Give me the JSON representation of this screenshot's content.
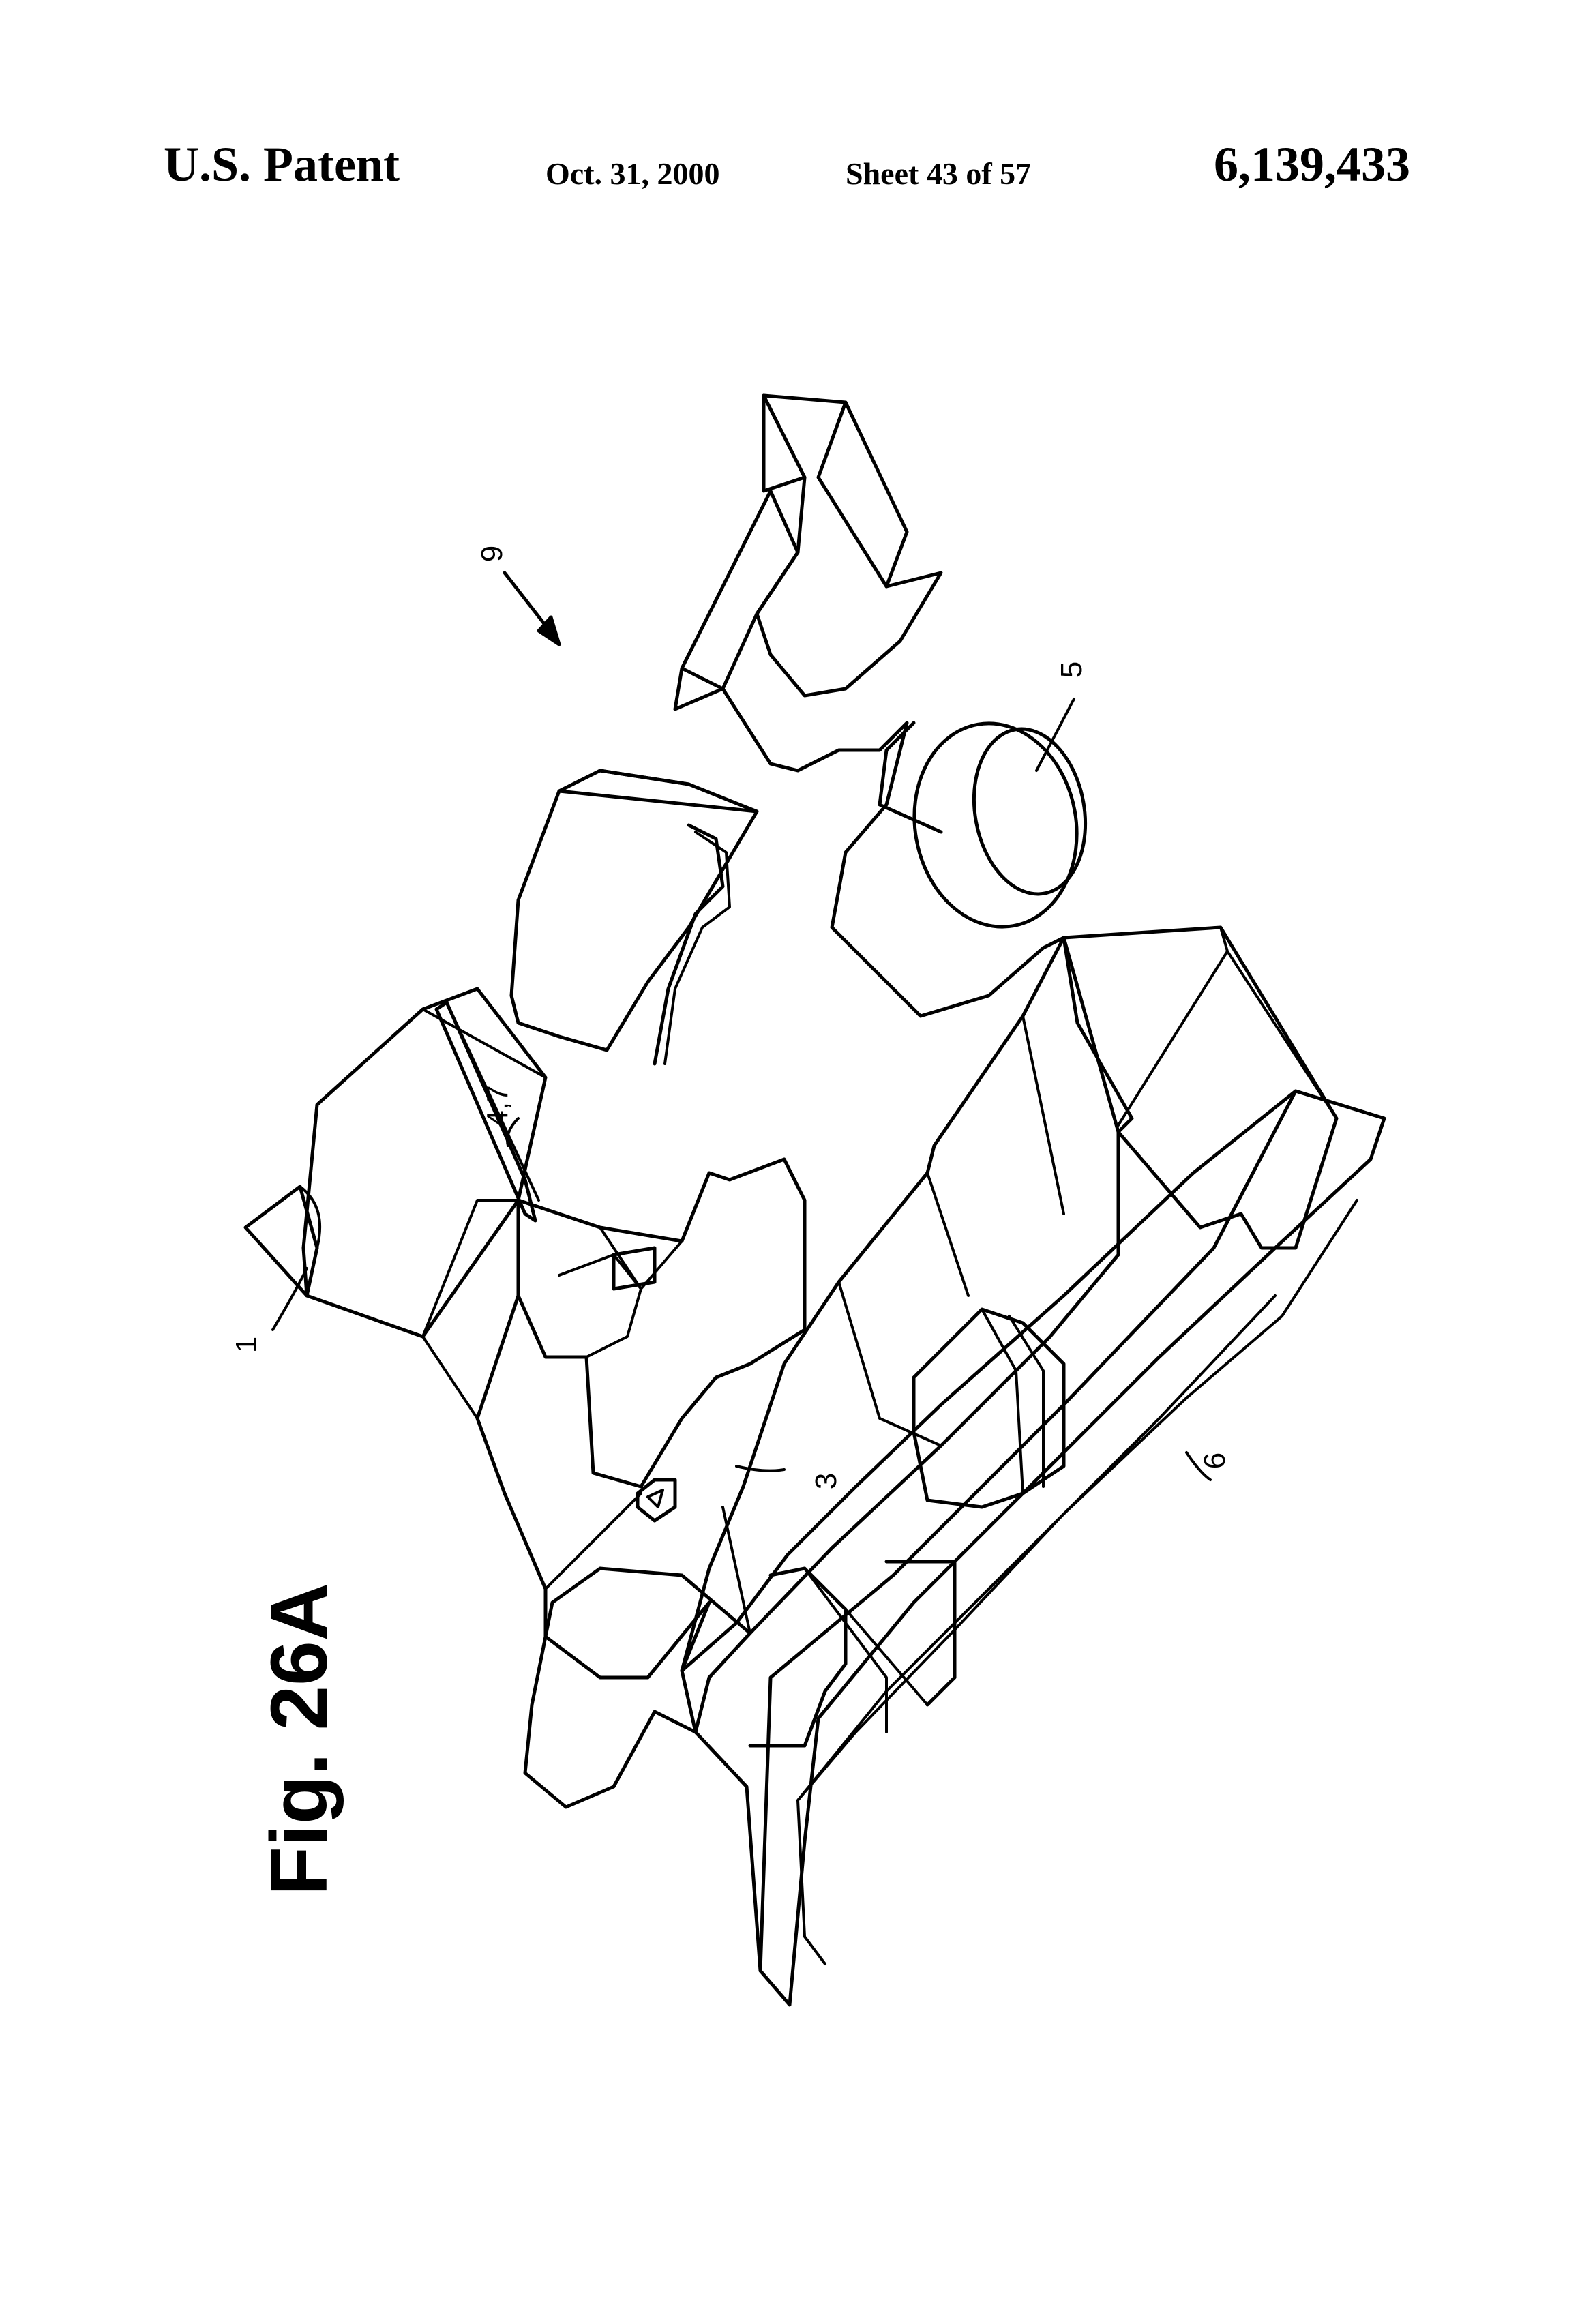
{
  "header": {
    "left": "U.S. Patent",
    "date": "Oct. 31, 2000",
    "sheet": "Sheet 43 of 57",
    "number": "6,139,433"
  },
  "figure": {
    "label": "Fig. 26A",
    "refs": {
      "r1": "1",
      "r3": "3",
      "r47": "4,7",
      "r5": "5",
      "r6": "6",
      "r9": "9"
    }
  }
}
